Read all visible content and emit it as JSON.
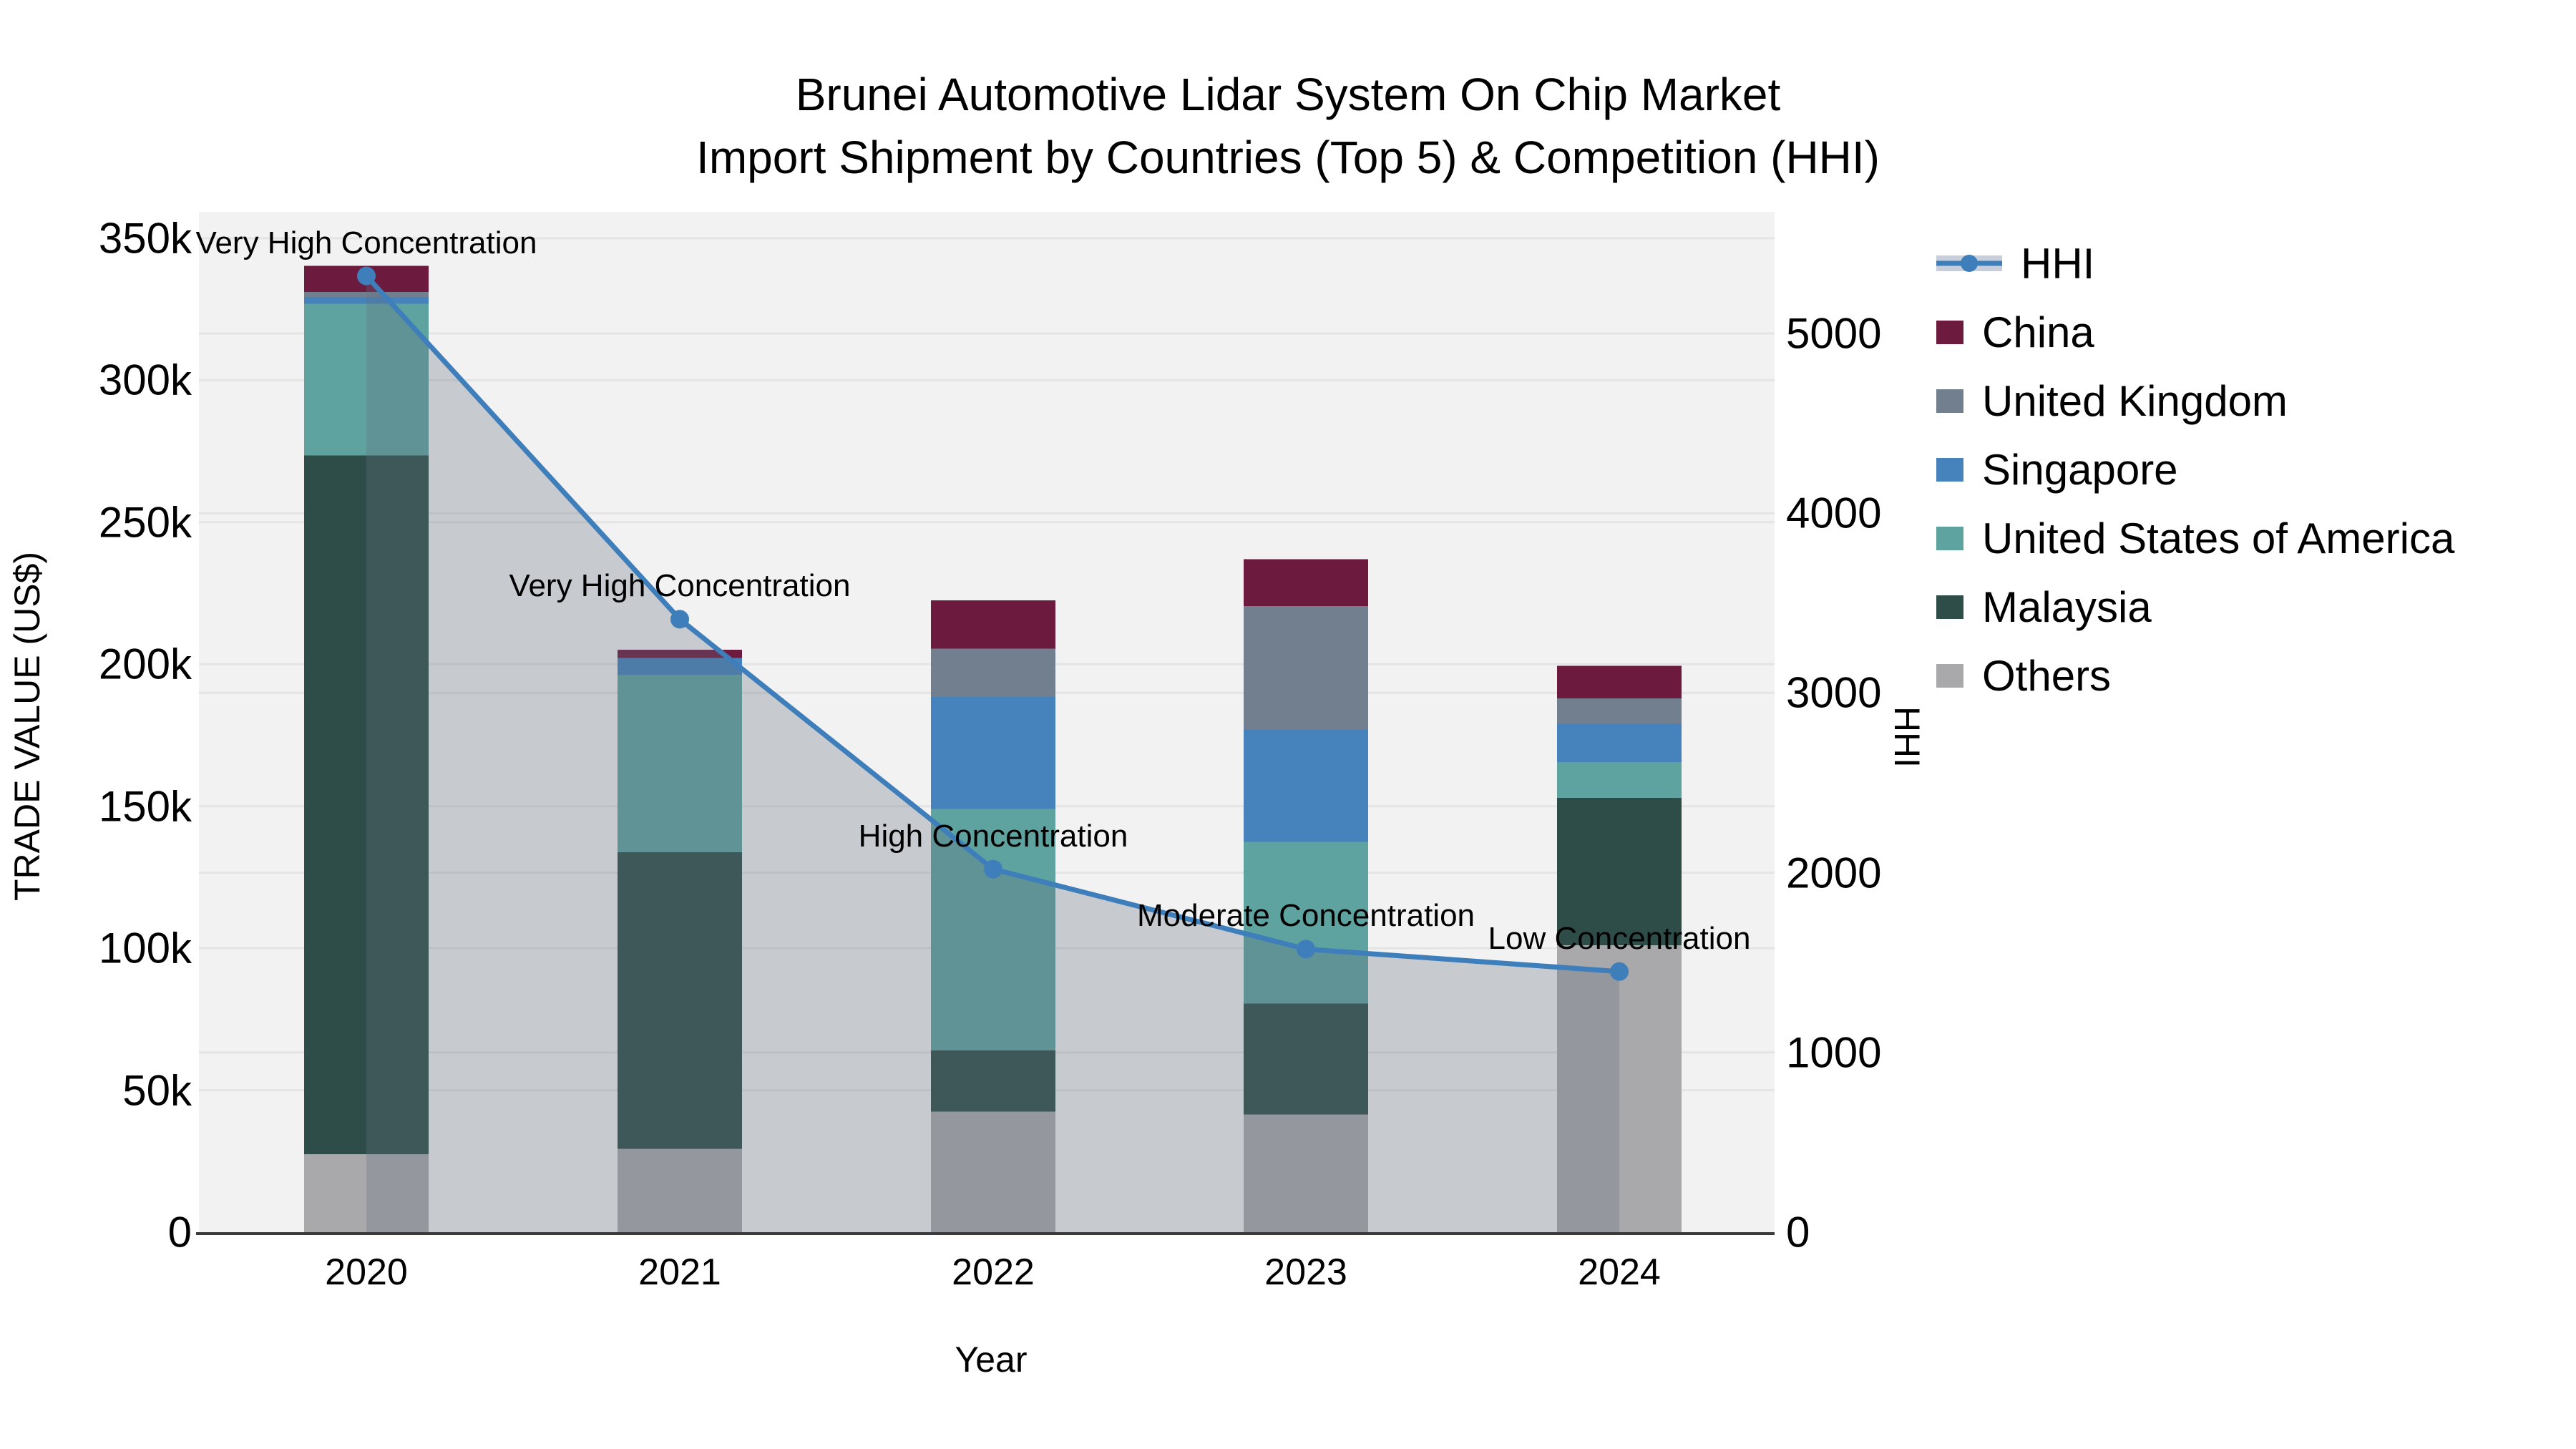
{
  "title": {
    "line1": "Brunei Automotive Lidar System On Chip Market",
    "line2": "Import Shipment by Countries (Top 5) & Competition (HHI)"
  },
  "colors": {
    "plot_bg": "#F2F2F2",
    "grid": "#E4E4E4",
    "axis_line": "#3A3A3A",
    "hhi_line": "#3D7EBB",
    "hhi_area_fill": "#65707F",
    "hhi_area_opacity": 0.3,
    "hhi_legend_band": "#C9CFDA",
    "text": "#000000"
  },
  "legend": [
    {
      "label": "HHI",
      "type": "line",
      "color": "#3D7EBB"
    },
    {
      "label": "China",
      "type": "square",
      "color": "#6C1B3F"
    },
    {
      "label": "United Kingdom",
      "type": "square",
      "color": "#717F8E"
    },
    {
      "label": "Singapore",
      "type": "square",
      "color": "#4682BC"
    },
    {
      "label": "United States of America",
      "type": "square",
      "color": "#5FA3A0"
    },
    {
      "label": "Malaysia",
      "type": "square",
      "color": "#2E4D49"
    },
    {
      "label": "Others",
      "type": "square",
      "color": "#A9A9AC"
    }
  ],
  "annotations": [
    {
      "text": "Very High Concentration",
      "year": "2020"
    },
    {
      "text": "Very High Concentration",
      "year": "2021"
    },
    {
      "text": "High Concentration",
      "year": "2022"
    },
    {
      "text": "Moderate Concentration",
      "year": "2023"
    },
    {
      "text": "Low Concentration",
      "year": "2024"
    }
  ],
  "chart_data": {
    "type": "stacked-bar+line",
    "categories": [
      "2020",
      "2021",
      "2022",
      "2023",
      "2024"
    ],
    "x": {
      "label": "Year"
    },
    "y_left": {
      "label": "TRADE VALUE (US$)",
      "ticks": [
        "0",
        "50k",
        "100k",
        "150k",
        "200k",
        "250k",
        "300k",
        "350k"
      ],
      "tick_values": [
        0,
        50000,
        100000,
        150000,
        200000,
        250000,
        300000,
        350000
      ],
      "range": [
        0,
        350000
      ]
    },
    "y_right": {
      "label": "HHI",
      "ticks": [
        "0",
        "1000",
        "2000",
        "3000",
        "4000",
        "5000"
      ],
      "tick_values": [
        0,
        1000,
        2000,
        3000,
        4000,
        5000
      ],
      "range": [
        0,
        5000
      ]
    },
    "series": [
      {
        "name": "Others",
        "color": "#A9A9AC",
        "values": [
          27500,
          29300,
          42500,
          41500,
          101000
        ]
      },
      {
        "name": "Malaysia",
        "color": "#2E4D49",
        "values": [
          246000,
          104500,
          21500,
          39000,
          52000
        ]
      },
      {
        "name": "United States of America",
        "color": "#5FA3A0",
        "values": [
          53500,
          62500,
          85000,
          57000,
          12500
        ]
      },
      {
        "name": "Singapore",
        "color": "#4682BC",
        "values": [
          2400,
          5900,
          39500,
          39500,
          13500
        ]
      },
      {
        "name": "United Kingdom",
        "color": "#717F8E",
        "values": [
          1700,
          0,
          17000,
          43500,
          9000
        ]
      },
      {
        "name": "China",
        "color": "#6C1B3F",
        "values": [
          9200,
          2900,
          17000,
          16500,
          11500
        ]
      }
    ],
    "bar_totals": [
      340300,
      205100,
      222500,
      237000,
      199500
    ],
    "line": {
      "name": "HHI",
      "values": [
        5320,
        3410,
        2020,
        1575,
        1450
      ]
    },
    "legend_position": "right",
    "grid": true
  }
}
